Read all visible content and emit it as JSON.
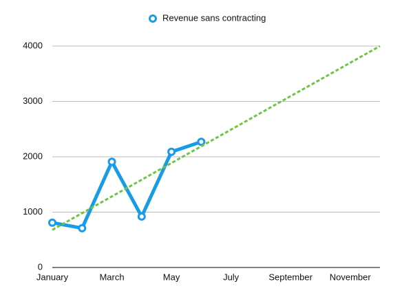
{
  "chart_data": {
    "type": "line",
    "categories": [
      "January",
      null,
      "March",
      null,
      "May",
      null,
      "July",
      null,
      "September",
      null,
      "November",
      null
    ],
    "series": [
      {
        "name": "Revenue sans contracting",
        "color": "#1a9be6",
        "values": [
          810,
          710,
          1910,
          920,
          2090,
          2270,
          null,
          null,
          null,
          null,
          null,
          null
        ]
      },
      {
        "color": "#6cc644",
        "dashed": true,
        "values": [
          680,
          982,
          1284,
          1585,
          1887,
          2189,
          2491,
          2793,
          3095,
          3396,
          3698,
          4000
        ]
      }
    ],
    "ylim": [
      0,
      4000
    ],
    "yticks": [
      0,
      1000,
      2000,
      3000,
      4000
    ],
    "grid": true,
    "legend": "top"
  }
}
